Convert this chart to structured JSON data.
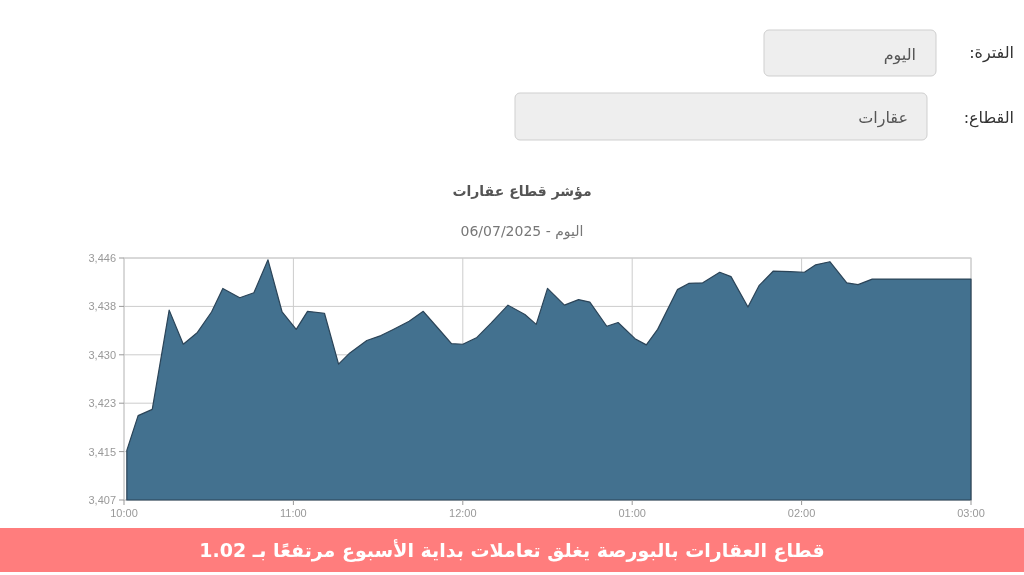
{
  "chart_data": {
    "type": "area",
    "title": "مؤشر قطاع عقارات",
    "subtitle": "اليوم - 06/07/2025",
    "annotations": [
      "الفترة:",
      "اليوم",
      "القطاع:",
      "عقارات",
      "قطاع العقارات بالبورصة يغلق تعاملات بداية الأسبوع مرتفعًا بـ 1.02"
    ],
    "x": [
      "2025-07-06T10:01",
      "2025-07-06T10:05",
      "2025-07-06T10:10",
      "2025-07-06T10:16",
      "2025-07-06T10:21",
      "2025-07-06T10:26",
      "2025-07-06T10:31",
      "2025-07-06T10:35",
      "2025-07-06T10:41",
      "2025-07-06T10:46",
      "2025-07-06T10:51",
      "2025-07-06T10:56",
      "2025-07-06T11:01",
      "2025-07-06T11:05",
      "2025-07-06T11:11",
      "2025-07-06T11:16",
      "2025-07-06T11:20",
      "2025-07-06T11:26",
      "2025-07-06T11:31",
      "2025-07-06T11:35",
      "2025-07-06T11:41",
      "2025-07-06T11:46",
      "2025-07-06T11:51",
      "2025-07-06T11:56",
      "2025-07-06T12:00",
      "2025-07-06T12:05",
      "2025-07-06T12:10",
      "2025-07-06T12:16",
      "2025-07-06T12:22",
      "2025-07-06T12:26",
      "2025-07-06T12:30",
      "2025-07-06T12:36",
      "2025-07-06T12:41",
      "2025-07-06T12:45",
      "2025-07-06T12:51",
      "2025-07-06T12:55",
      "2025-07-06T13:01",
      "2025-07-06T13:05",
      "2025-07-06T13:09",
      "2025-07-06T13:16",
      "2025-07-06T13:20",
      "2025-07-06T13:25",
      "2025-07-06T13:31",
      "2025-07-06T13:35",
      "2025-07-06T13:41",
      "2025-07-06T13:45",
      "2025-07-06T13:50",
      "2025-07-06T13:56",
      "2025-07-06T14:01",
      "2025-07-06T14:05",
      "2025-07-06T14:10",
      "2025-07-06T14:16",
      "2025-07-06T14:20",
      "2025-07-06T14:25",
      "2025-07-06T15:00"
    ],
    "series": [
      {
        "color": "#43718f",
        "values": [
          3415.0,
          3420.6,
          3421.6,
          3437.6,
          3432.1,
          3434.0,
          3437.3,
          3441.1,
          3439.6,
          3440.4,
          3445.7,
          3437.3,
          3434.5,
          3437.4,
          3437.1,
          3428.9,
          3430.7,
          3432.7,
          3433.5,
          3434.4,
          3435.8,
          3437.4,
          3434.8,
          3432.2,
          3432.1,
          3433.2,
          3435.5,
          3438.4,
          3436.9,
          3435.3,
          3441.1,
          3438.4,
          3439.3,
          3438.9,
          3435.0,
          3435.6,
          3433.0,
          3432.0,
          3434.5,
          3440.9,
          3441.9,
          3442.0,
          3443.7,
          3443.0,
          3438.1,
          3441.6,
          3443.9,
          3443.8,
          3443.7,
          3444.9,
          3445.4,
          3442.0,
          3441.7,
          3442.6,
          3442.6
        ]
      }
    ],
    "xlim": [
      "2025-07-06T10:00",
      "2025-07-06T15:00"
    ],
    "ylim": [
      3407,
      3446
    ],
    "xticks": [
      {
        "value": "2025-07-06T10:00",
        "label": "10:00"
      },
      {
        "value": "2025-07-06T11:00",
        "label": "11:00"
      },
      {
        "value": "2025-07-06T12:00",
        "label": "12:00"
      },
      {
        "value": "2025-07-06T13:00",
        "label": "01:00"
      },
      {
        "value": "2025-07-06T14:00",
        "label": "02:00"
      },
      {
        "value": "2025-07-06T15:00",
        "label": "03:00"
      }
    ],
    "yticks": [
      {
        "value": 3407,
        "label": "3,407"
      },
      {
        "value": 3414.8,
        "label": "3,415"
      },
      {
        "value": 3422.6,
        "label": "3,423"
      },
      {
        "value": 3430.4,
        "label": "3,430"
      },
      {
        "value": 3438.2,
        "label": "3,438"
      },
      {
        "value": 3446,
        "label": "3,446"
      }
    ],
    "grid": true
  }
}
